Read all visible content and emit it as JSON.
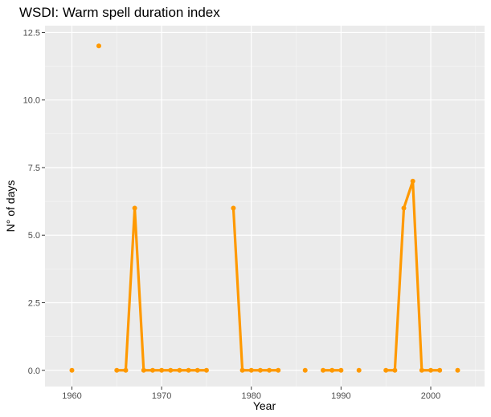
{
  "chart_data": {
    "type": "line",
    "title": "WSDI: Warm spell duration index",
    "xlabel": "Year",
    "ylabel": "N° of days",
    "xlim": [
      1957,
      2006
    ],
    "ylim": [
      -0.6,
      12.75
    ],
    "x_ticks": [
      1960,
      1970,
      1980,
      1990,
      2000
    ],
    "y_ticks": [
      0.0,
      2.5,
      5.0,
      7.5,
      10.0,
      12.5
    ],
    "x_tick_labels": [
      "1960",
      "1970",
      "1980",
      "1990",
      "2000"
    ],
    "y_tick_labels": [
      "0.0",
      "2.5",
      "5.0",
      "7.5",
      "10.0",
      "12.5"
    ],
    "grid": true,
    "legend": "none",
    "series": [
      {
        "color": "#FF9900",
        "x": [
          1960,
          1963,
          1965,
          1966,
          1967,
          1968,
          1969,
          1970,
          1971,
          1972,
          1973,
          1974,
          1975,
          1978,
          1979,
          1980,
          1981,
          1982,
          1983,
          1986,
          1988,
          1989,
          1990,
          1992,
          1995,
          1996,
          1997,
          1998,
          1999,
          2000,
          2001,
          2003
        ],
        "y": [
          0,
          12,
          0,
          0,
          6,
          0,
          0,
          0,
          0,
          0,
          0,
          0,
          0,
          6,
          0,
          0,
          0,
          0,
          0,
          0,
          0,
          0,
          0,
          0,
          0,
          0,
          6,
          7,
          0,
          0,
          0,
          0
        ]
      }
    ]
  }
}
